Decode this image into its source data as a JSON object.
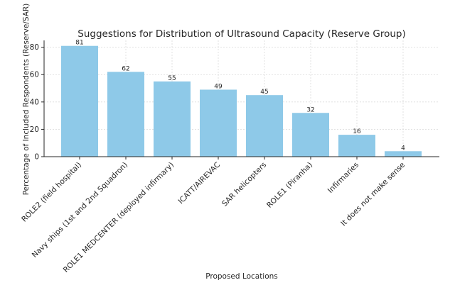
{
  "chart_data": {
    "type": "bar",
    "title": "Suggestions for Distribution of Ultrasound Capacity (Reserve Group)",
    "xlabel": "Proposed Locations",
    "ylabel": "Percentage of Included Respondents (Reserve/SAR)",
    "categories": [
      "ROLE2 (field hospital)",
      "Navy ships (1st and 2nd Squadron)",
      "ROLE1 MEDCENTER (deployed infirmary)",
      "ICATT/AIREVAC",
      "SAR helicopters",
      "ROLE1 (Piranha)",
      "Infirmaries",
      "It does not make sense"
    ],
    "values": [
      81,
      62,
      55,
      49,
      45,
      32,
      16,
      4
    ],
    "yticks": [
      0,
      20,
      40,
      60,
      80
    ],
    "ylim": [
      0,
      85
    ],
    "grid": true,
    "bar_color": "#8ec9e8"
  }
}
